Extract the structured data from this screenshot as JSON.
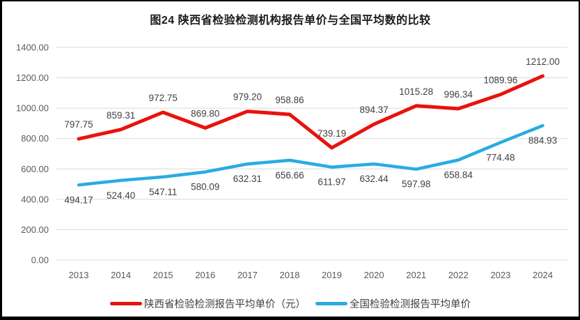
{
  "chart_data": {
    "type": "line",
    "title": "图24 陕西省检验检测机构报告单价与全国平均数的比较",
    "categories": [
      "2013",
      "2014",
      "2015",
      "2016",
      "2017",
      "2018",
      "2019",
      "2020",
      "2021",
      "2022",
      "2023",
      "2024"
    ],
    "series": [
      {
        "name": "陕西省检验检测报告平均单价（元）",
        "color": "#e8130c",
        "label_position": "above",
        "values": [
          797.75,
          859.31,
          972.75,
          869.8,
          979.2,
          958.86,
          739.19,
          894.37,
          1015.28,
          996.34,
          1089.96,
          1212.0
        ]
      },
      {
        "name": "全国检验检测报告平均单价",
        "color": "#29abe2",
        "label_position": "below",
        "values": [
          494.17,
          524.4,
          547.11,
          580.09,
          632.31,
          656.66,
          611.97,
          632.44,
          597.98,
          658.84,
          774.48,
          884.93
        ]
      }
    ],
    "ylim": [
      0,
      1400
    ],
    "ytick_step": 200,
    "ytick_labels": [
      "0.00",
      "200.00",
      "400.00",
      "600.00",
      "800.00",
      "1000.00",
      "1200.00",
      "1400.00"
    ],
    "grid": "horizontal",
    "legend_position": "bottom",
    "gridline_color": "#d9d9d9",
    "axis_label_color": "#595959",
    "data_label_color": "#404040"
  }
}
